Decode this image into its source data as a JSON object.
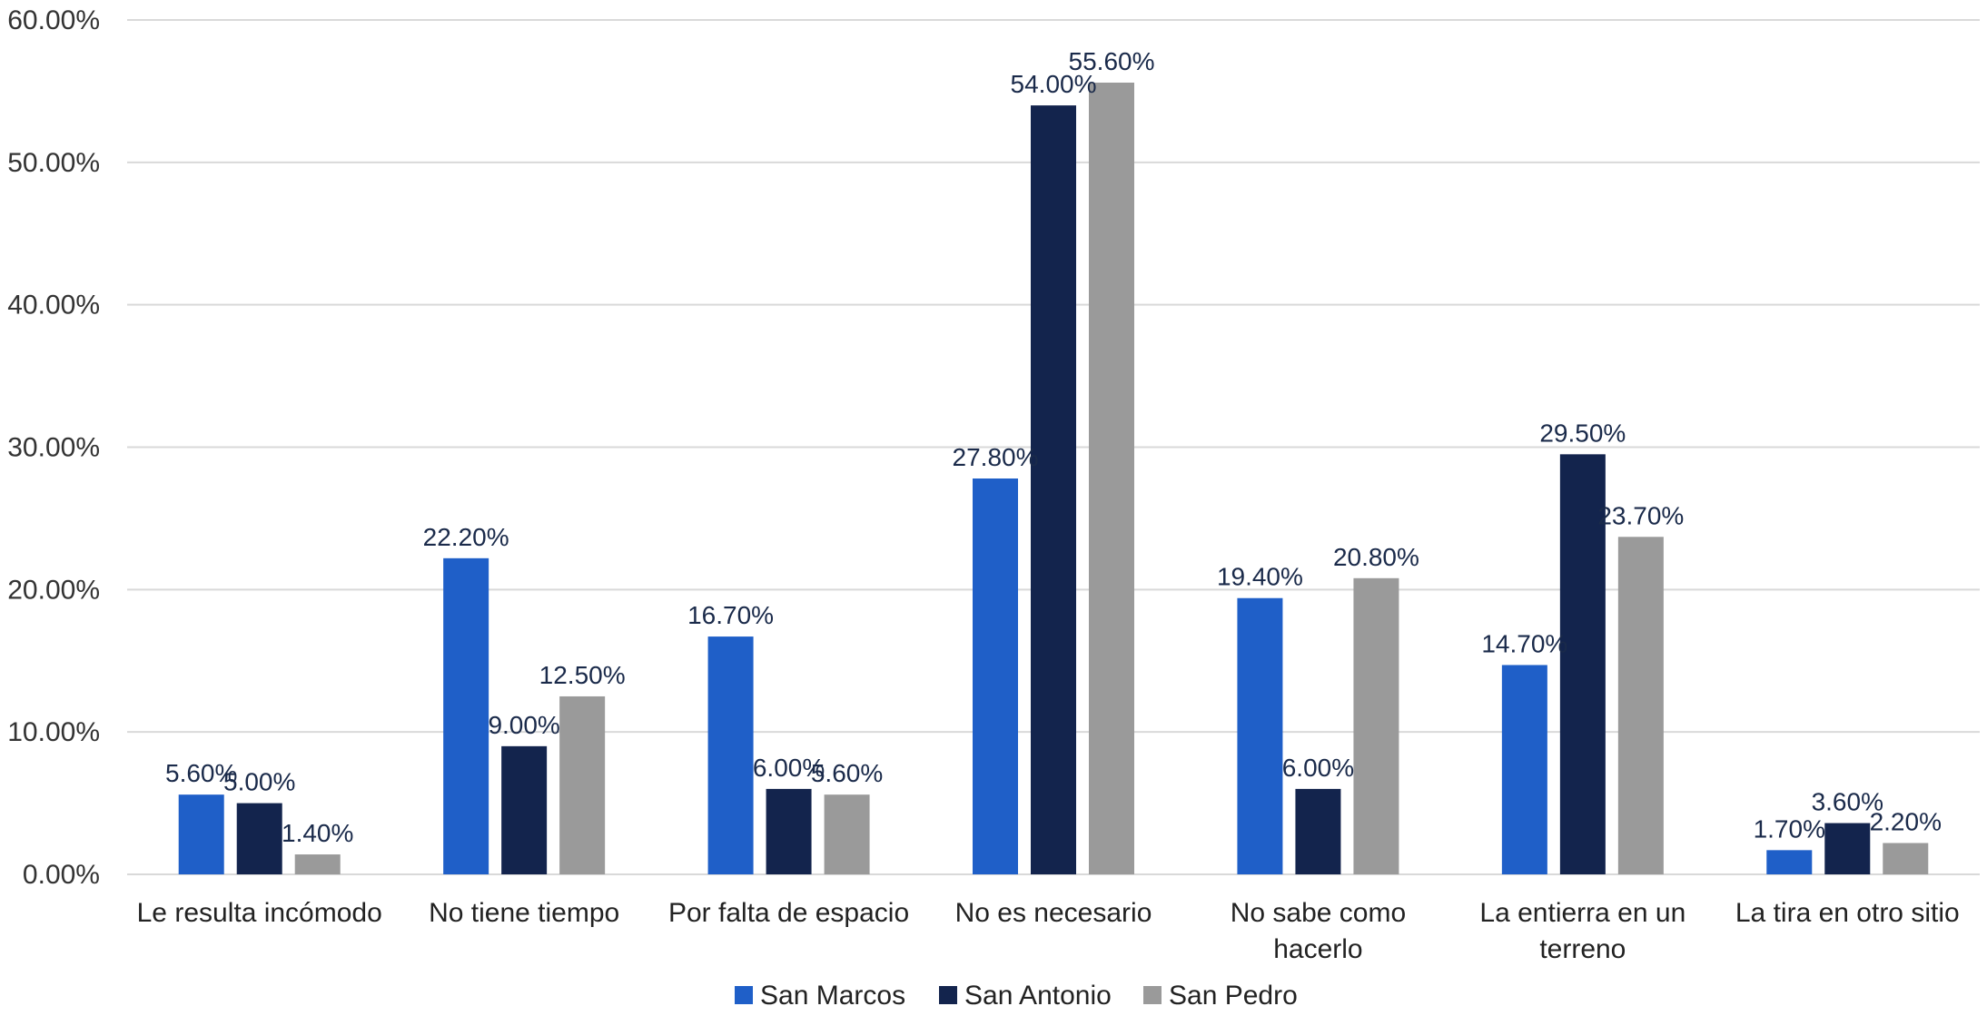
{
  "chart_data": {
    "type": "bar",
    "categories": [
      [
        "Le resulta incómodo"
      ],
      [
        "No tiene tiempo"
      ],
      [
        "Por falta de espacio"
      ],
      [
        "No es necesario"
      ],
      [
        "No sabe como",
        "hacerlo"
      ],
      [
        "La entierra en un",
        "terreno"
      ],
      [
        "La tira en otro sitio"
      ]
    ],
    "series": [
      {
        "name": "San Marcos",
        "color": "#1f5fc8",
        "values": [
          5.6,
          22.2,
          16.7,
          27.8,
          19.4,
          14.7,
          1.7
        ],
        "labels": [
          "5.60%",
          "22.20%",
          "16.70%",
          "27.80%",
          "19.40%",
          "14.70%",
          "1.70%"
        ]
      },
      {
        "name": "San Antonio",
        "color": "#13244d",
        "values": [
          5.0,
          9.0,
          6.0,
          54.0,
          6.0,
          29.5,
          3.6
        ],
        "labels": [
          "5.00%",
          "9.00%",
          "6.00%",
          "54.00%",
          "6.00%",
          "29.50%",
          "3.60%"
        ]
      },
      {
        "name": "San Pedro",
        "color": "#9a9a9a",
        "values": [
          1.4,
          12.5,
          5.6,
          55.6,
          20.8,
          23.7,
          2.2
        ],
        "labels": [
          "1.40%",
          "12.50%",
          "5.60%",
          "55.60%",
          "20.80%",
          "23.70%",
          "2.20%"
        ]
      }
    ],
    "ylim": [
      0,
      60
    ],
    "yticks": [
      0,
      10,
      20,
      30,
      40,
      50,
      60
    ],
    "ytick_labels": [
      "0.00%",
      "10.00%",
      "20.00%",
      "30.00%",
      "40.00%",
      "50.00%",
      "60.00%"
    ],
    "grid": true,
    "legend_position": "bottom"
  }
}
